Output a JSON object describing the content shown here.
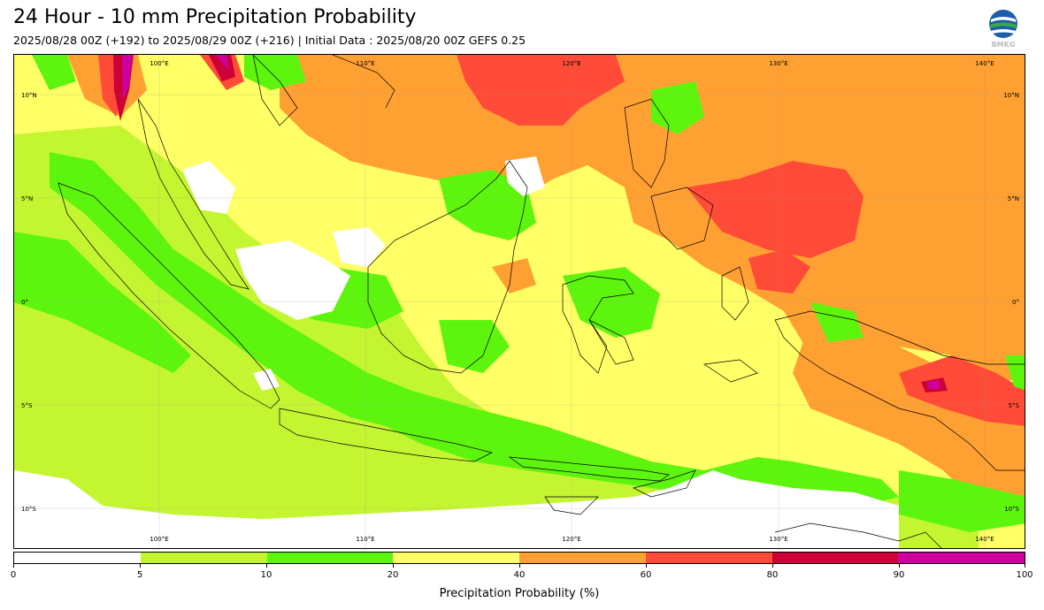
{
  "header": {
    "title": "24 Hour - 10 mm Precipitation Probability",
    "subtitle": "2025/08/28 00Z (+192) to 2025/08/29 00Z (+216) | Initial Data : 2025/08/20 00Z GEFS 0.25"
  },
  "logo": {
    "icon": "bmkg-logo-icon",
    "text": "BMKG"
  },
  "map": {
    "lon_labels": [
      "100°E",
      "110°E",
      "120°E",
      "130°E",
      "140°E"
    ],
    "lat_labels": [
      "10°N",
      "5°N",
      "0°",
      "5°S",
      "10°S"
    ],
    "lon_range": [
      93,
      142
    ],
    "lat_range": [
      -12,
      12
    ]
  },
  "colorbar": {
    "label": "Precipitation Probability (%)",
    "ticks": [
      "0",
      "5",
      "10",
      "20",
      "40",
      "60",
      "80",
      "90",
      "100"
    ],
    "colors": [
      "#ffffff",
      "#c4f531",
      "#5df50d",
      "#ffff66",
      "#ffa033",
      "#ff4b37",
      "#cc0036",
      "#cc00a0"
    ]
  },
  "colors": {
    "p0": "#ffffff",
    "p5": "#c4f531",
    "p10": "#5df50d",
    "p20": "#ffff66",
    "p40": "#ffa033",
    "p60": "#ff4b37",
    "p80": "#cc0036",
    "p90": "#cc00a0"
  }
}
